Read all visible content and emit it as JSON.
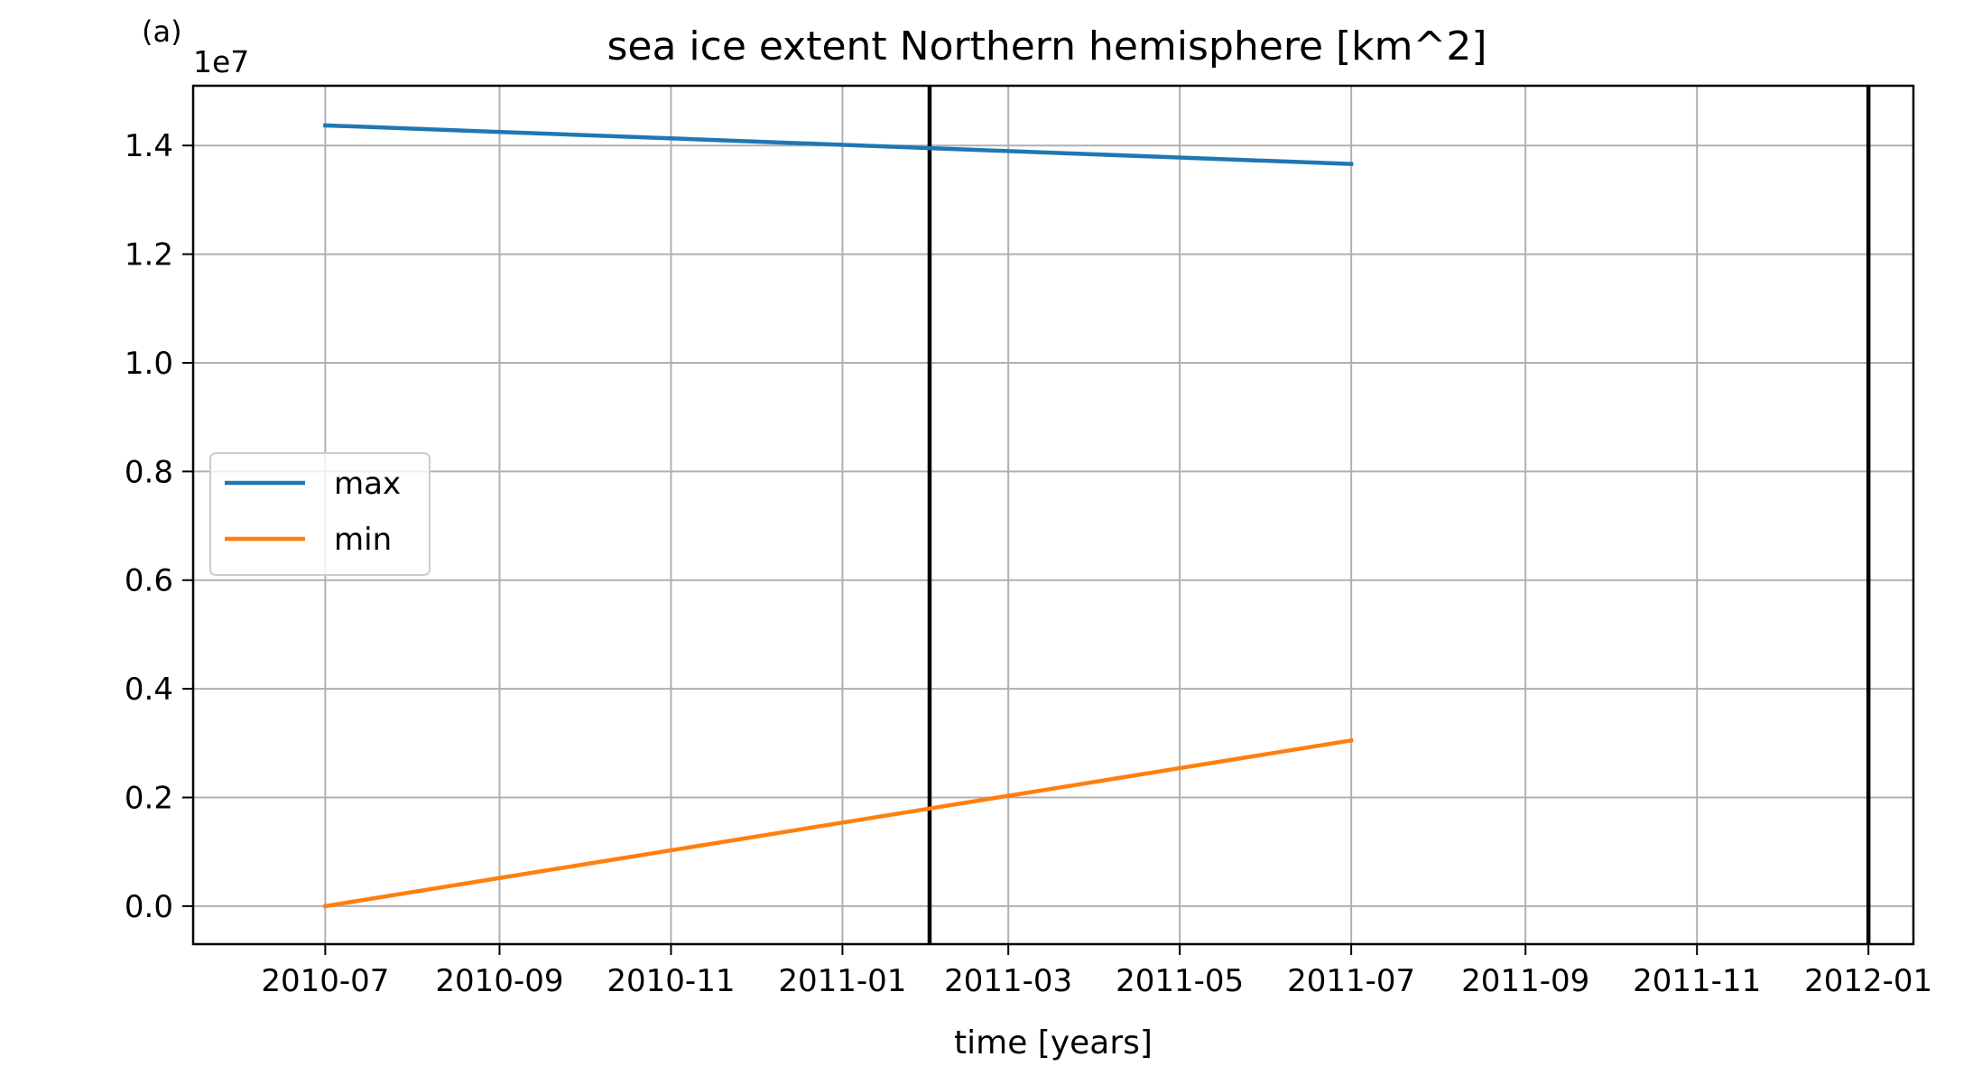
{
  "panel_label": "(a)",
  "chart_data": {
    "type": "line",
    "title": "sea ice extent Northern hemisphere [km^2]",
    "xlabel": "time [years]",
    "ylabel": "",
    "y_offset_label": "1e7",
    "x_scale": "date",
    "xlim": [
      "2010-05-15",
      "2012-01-17"
    ],
    "ylim": [
      -0.07,
      1.51
    ],
    "y_unit_multiplier": 10000000,
    "x_ticks": [
      "2010-07",
      "2010-09",
      "2010-11",
      "2011-01",
      "2011-03",
      "2011-05",
      "2011-07",
      "2011-09",
      "2011-11",
      "2012-01"
    ],
    "x_tick_dates": [
      "2010-07-01",
      "2010-09-01",
      "2010-11-01",
      "2011-01-01",
      "2011-03-01",
      "2011-05-01",
      "2011-07-01",
      "2011-09-01",
      "2011-11-01",
      "2012-01-01"
    ],
    "y_ticks": [
      0.0,
      0.2,
      0.4,
      0.6,
      0.8,
      1.0,
      1.2,
      1.4
    ],
    "y_tick_labels": [
      "0.0",
      "0.2",
      "0.4",
      "0.6",
      "0.8",
      "1.0",
      "1.2",
      "1.4"
    ],
    "grid": true,
    "legend_position": "center-left",
    "series": [
      {
        "name": "max",
        "color": "#1f77b4",
        "x": [
          "2010-07-01",
          "2011-07-01"
        ],
        "y": [
          1.437,
          1.366
        ]
      },
      {
        "name": "min",
        "color": "#ff7f0e",
        "x": [
          "2010-07-01",
          "2011-07-01"
        ],
        "y": [
          0.0,
          0.305
        ]
      }
    ],
    "vlines": [
      {
        "x": "2011-02-01",
        "color": "#000000"
      },
      {
        "x": "2012-01-01",
        "color": "#000000"
      }
    ]
  }
}
